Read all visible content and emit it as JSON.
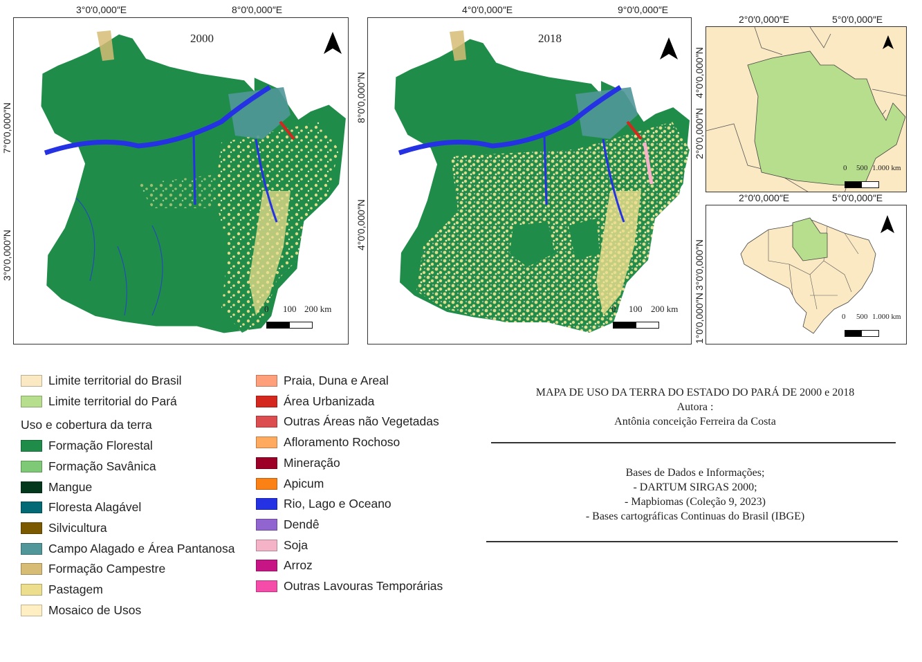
{
  "maps": {
    "map2000": {
      "year": "2000",
      "top_ticks": [
        "3°0′0,000″E",
        "8°0′0,000″E"
      ],
      "left_ticks": [
        "7°0′0,000″N",
        "3°0′0,000″N"
      ],
      "scale": {
        "zero": "0",
        "mid": "100",
        "end": "200 km"
      }
    },
    "map2018": {
      "year": "2018",
      "top_ticks": [
        "4°0′0,000″E",
        "9°0′0,000″E"
      ],
      "left_ticks": [
        "8°0′0,000″N",
        "4°0′0,000″N"
      ],
      "scale": {
        "zero": "0",
        "mid": "100",
        "end": "200 km"
      }
    },
    "inset_region": {
      "top_ticks": [
        "2°0′0,000″E",
        "5°0′0,000″E"
      ],
      "left_ticks": [
        "4°0′0,000″N",
        "2°0′0,000″N"
      ],
      "scale": {
        "zero": "0",
        "mid": "500",
        "end": "1.000 km"
      }
    },
    "inset_brazil": {
      "top_ticks": [
        "2°0′0,000″E",
        "5°0′0,000″E"
      ],
      "left_ticks": [
        "3°0′0,000″N",
        "1°0′0,000″N"
      ],
      "scale": {
        "zero": "0",
        "mid": "500",
        "end": "1.000 km"
      }
    }
  },
  "legend": {
    "boundaries": [
      {
        "label": "Limite territorial do Brasil",
        "color": "#fbe9c4"
      },
      {
        "label": "Limite territorial do  Pará",
        "color": "#b6de8c"
      }
    ],
    "landuse_heading": "Uso e cobertura da terra",
    "col1": [
      {
        "label": " Formação Florestal",
        "color": "#1f8d49"
      },
      {
        "label": "Formação Savânica",
        "color": "#7dc975"
      },
      {
        "label": "Mangue",
        "color": "#04381d"
      },
      {
        "label": " Floresta Alagável",
        "color": "#026975"
      },
      {
        "label": "Silvicultura",
        "color": "#7a5900"
      },
      {
        "label": " Campo Alagado e Área Pantanosa",
        "color": "#519799"
      },
      {
        "label": " Formação Campestre",
        "color": "#d6bc74"
      },
      {
        "label": "Pastagem",
        "color": "#edde8e"
      },
      {
        "label": "Mosaico de Usos",
        "color": "#ffefc3"
      }
    ],
    "col2": [
      {
        "label": " Praia, Duna e Areal",
        "color": "#ffa07a"
      },
      {
        "label": " Área Urbanizada",
        "color": "#d4271e"
      },
      {
        "label": "Outras Áreas não Vegetadas",
        "color": "#db4d4f"
      },
      {
        "label": "Afloramento Rochoso",
        "color": "#ffaa5f"
      },
      {
        "label": "Mineração",
        "color": "#9c0027"
      },
      {
        "label": "Apicum",
        "color": "#fc8114"
      },
      {
        "label": " Rio, Lago e Oceano",
        "color": "#2532e4"
      },
      {
        "label": " Dendê",
        "color": "#9065d0"
      },
      {
        "label": " Soja",
        "color": "#f5b3c8"
      },
      {
        "label": " Arroz",
        "color": "#c71585"
      },
      {
        "label": "Outras Lavouras Temporárias",
        "color": "#f54ca9"
      }
    ]
  },
  "info": {
    "title": "MAPA DE USO DA TERRA DO ESTADO DO PARÁ DE 2000 e 2018",
    "author_label": "Autora :",
    "author": "Antônia conceição Ferreira da Costa",
    "sources_heading": "Bases de Dados e Informações;",
    "sources": [
      "- DARTUM SIRGAS 2000;",
      "- Mapbiomas (Coleção 9, 2023)",
      "- Bases cartográficas Continuas do Brasil (IBGE)"
    ]
  }
}
